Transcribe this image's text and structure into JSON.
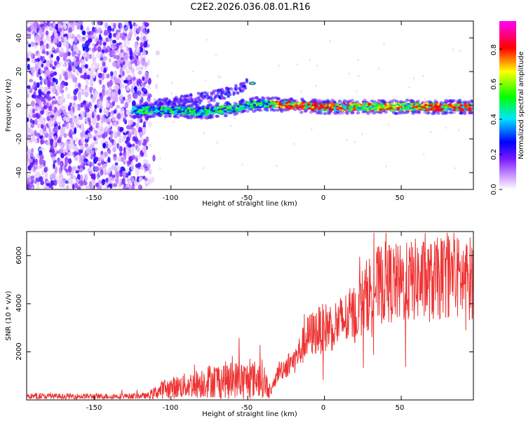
{
  "figure": {
    "title": "C2E2.2026.036.08.01.R16"
  },
  "chart_data": [
    {
      "type": "heatmap",
      "title": "C2E2.2026.036.08.01.R16",
      "xlabel": "Height of straight line (km)",
      "ylabel": "Frequency (Hz)",
      "xlim": [
        -194,
        97
      ],
      "ylim": [
        -50,
        50
      ],
      "x_ticks": [
        "-150",
        "-100",
        "-50",
        "0",
        "50"
      ],
      "y_ticks": [
        "-40",
        "-20",
        "0",
        "20",
        "40"
      ],
      "colorbar": {
        "label": "Normalized spectral amplitude",
        "range": [
          0,
          1
        ],
        "ticks": [
          "0.0",
          "0.2",
          "0.4",
          "0.6",
          "0.8"
        ],
        "colors": [
          "#ffffff",
          "#cc99ff",
          "#7a1aff",
          "#0000ff",
          "#00e5ff",
          "#00ff00",
          "#ffff00",
          "#ff0000",
          "#ff00ff"
        ]
      },
      "regions": [
        {
          "name": "noise",
          "x": [
            -194,
            -115
          ],
          "freq": [
            -50,
            50
          ],
          "amplitude": [
            0.0,
            0.25
          ]
        },
        {
          "name": "trace",
          "x": [
            -125,
            97
          ],
          "freq_center": [
            [
              -125,
              -3
            ],
            [
              -100,
              -3
            ],
            [
              -80,
              -4
            ],
            [
              -60,
              -2
            ],
            [
              -50,
              0
            ],
            [
              -40,
              1
            ],
            [
              -20,
              0
            ],
            [
              0,
              -1
            ],
            [
              50,
              -1
            ],
            [
              97,
              -1
            ]
          ],
          "amplitude": [
            0.3,
            1.0
          ]
        },
        {
          "name": "branch",
          "x": [
            -110,
            -50
          ],
          "freq_center": [
            [
              -110,
              0
            ],
            [
              -90,
              3
            ],
            [
              -75,
              5
            ],
            [
              -60,
              8
            ],
            [
              -48,
              14
            ]
          ],
          "amplitude": [
            0.2,
            0.5
          ]
        }
      ]
    },
    {
      "type": "line",
      "xlabel": "Height of straight line (km)",
      "ylabel": "SNR (10 * v/v)",
      "xlim": [
        -194,
        97
      ],
      "ylim": [
        0,
        7000
      ],
      "x_ticks": [
        "-150",
        "-100",
        "-50",
        "0",
        "50"
      ],
      "y_ticks": [
        "2000",
        "4000",
        "6000"
      ],
      "color": "#ee3333",
      "series": [
        {
          "x": [
            -194,
            -150,
            -115,
            -105,
            -95,
            -85,
            -75,
            -65,
            -50,
            -40,
            -35,
            -30,
            -20,
            -10,
            0,
            10,
            20,
            30,
            40,
            50,
            60,
            70,
            80,
            90,
            97
          ],
          "y": [
            150,
            150,
            170,
            450,
            550,
            650,
            800,
            850,
            850,
            900,
            300,
            1200,
            1600,
            2700,
            3000,
            3200,
            3600,
            4600,
            4900,
            4800,
            5000,
            4900,
            5200,
            5000,
            5100
          ]
        }
      ]
    }
  ]
}
